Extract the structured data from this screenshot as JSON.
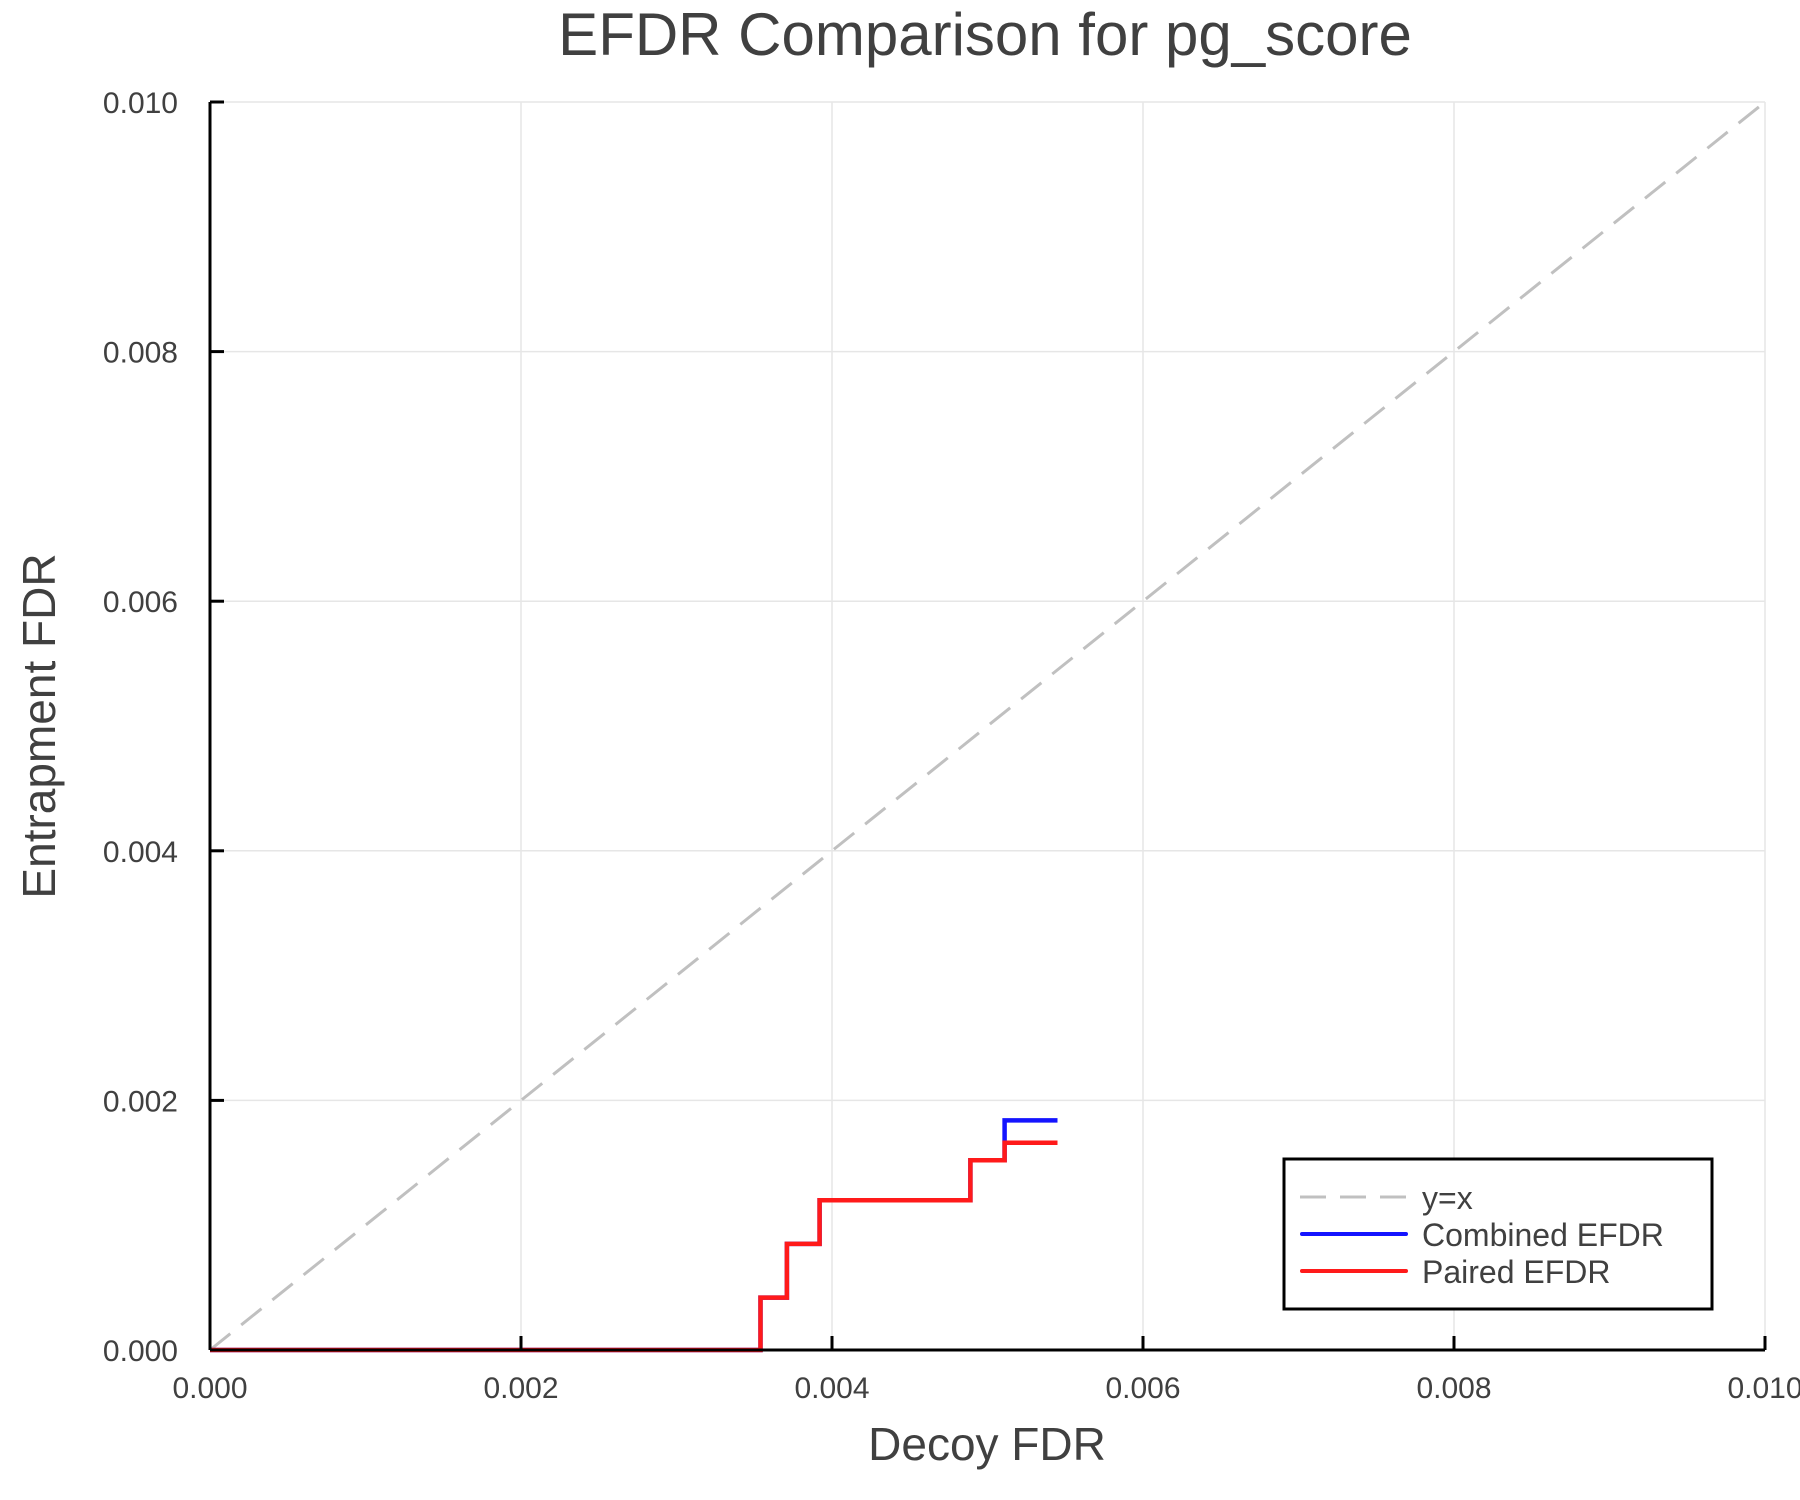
{
  "chart_data": {
    "type": "line",
    "title": "EFDR Comparison for pg_score",
    "xlabel": "Decoy FDR",
    "ylabel": "Entrapment FDR",
    "xlim": [
      0.0,
      0.01
    ],
    "ylim": [
      0.0,
      0.01
    ],
    "xticks": [
      "0.000",
      "0.002",
      "0.004",
      "0.006",
      "0.008",
      "0.010"
    ],
    "yticks": [
      "0.000",
      "0.002",
      "0.004",
      "0.006",
      "0.008",
      "0.010"
    ],
    "grid": true,
    "legend_position": "bottom-right",
    "series": [
      {
        "name": "y=x",
        "color": "#c0c0c0",
        "style": "dashed",
        "x": [
          0.0,
          0.01
        ],
        "y": [
          0.0,
          0.01
        ]
      },
      {
        "name": "Combined EFDR",
        "color": "#1414ff",
        "style": "solid-step",
        "x": [
          0.0,
          0.00354,
          0.00354,
          0.00371,
          0.00371,
          0.00392,
          0.00392,
          0.00489,
          0.00489,
          0.00511,
          0.00511,
          0.00545
        ],
        "y": [
          0.0,
          0.0,
          0.00042,
          0.00042,
          0.00085,
          0.00085,
          0.0012,
          0.0012,
          0.00152,
          0.00152,
          0.00184,
          0.00184
        ]
      },
      {
        "name": "Paired EFDR",
        "color": "#ff1a1a",
        "style": "solid-step",
        "x": [
          0.0,
          0.00354,
          0.00354,
          0.00371,
          0.00371,
          0.00392,
          0.00392,
          0.00489,
          0.00489,
          0.00511,
          0.00511,
          0.00545
        ],
        "y": [
          0.0,
          0.0,
          0.00042,
          0.00042,
          0.00085,
          0.00085,
          0.0012,
          0.0012,
          0.00152,
          0.00152,
          0.00166,
          0.00166
        ]
      }
    ]
  },
  "legend": {
    "items": [
      {
        "label": "y=x"
      },
      {
        "label": "Combined EFDR"
      },
      {
        "label": "Paired EFDR"
      }
    ]
  }
}
